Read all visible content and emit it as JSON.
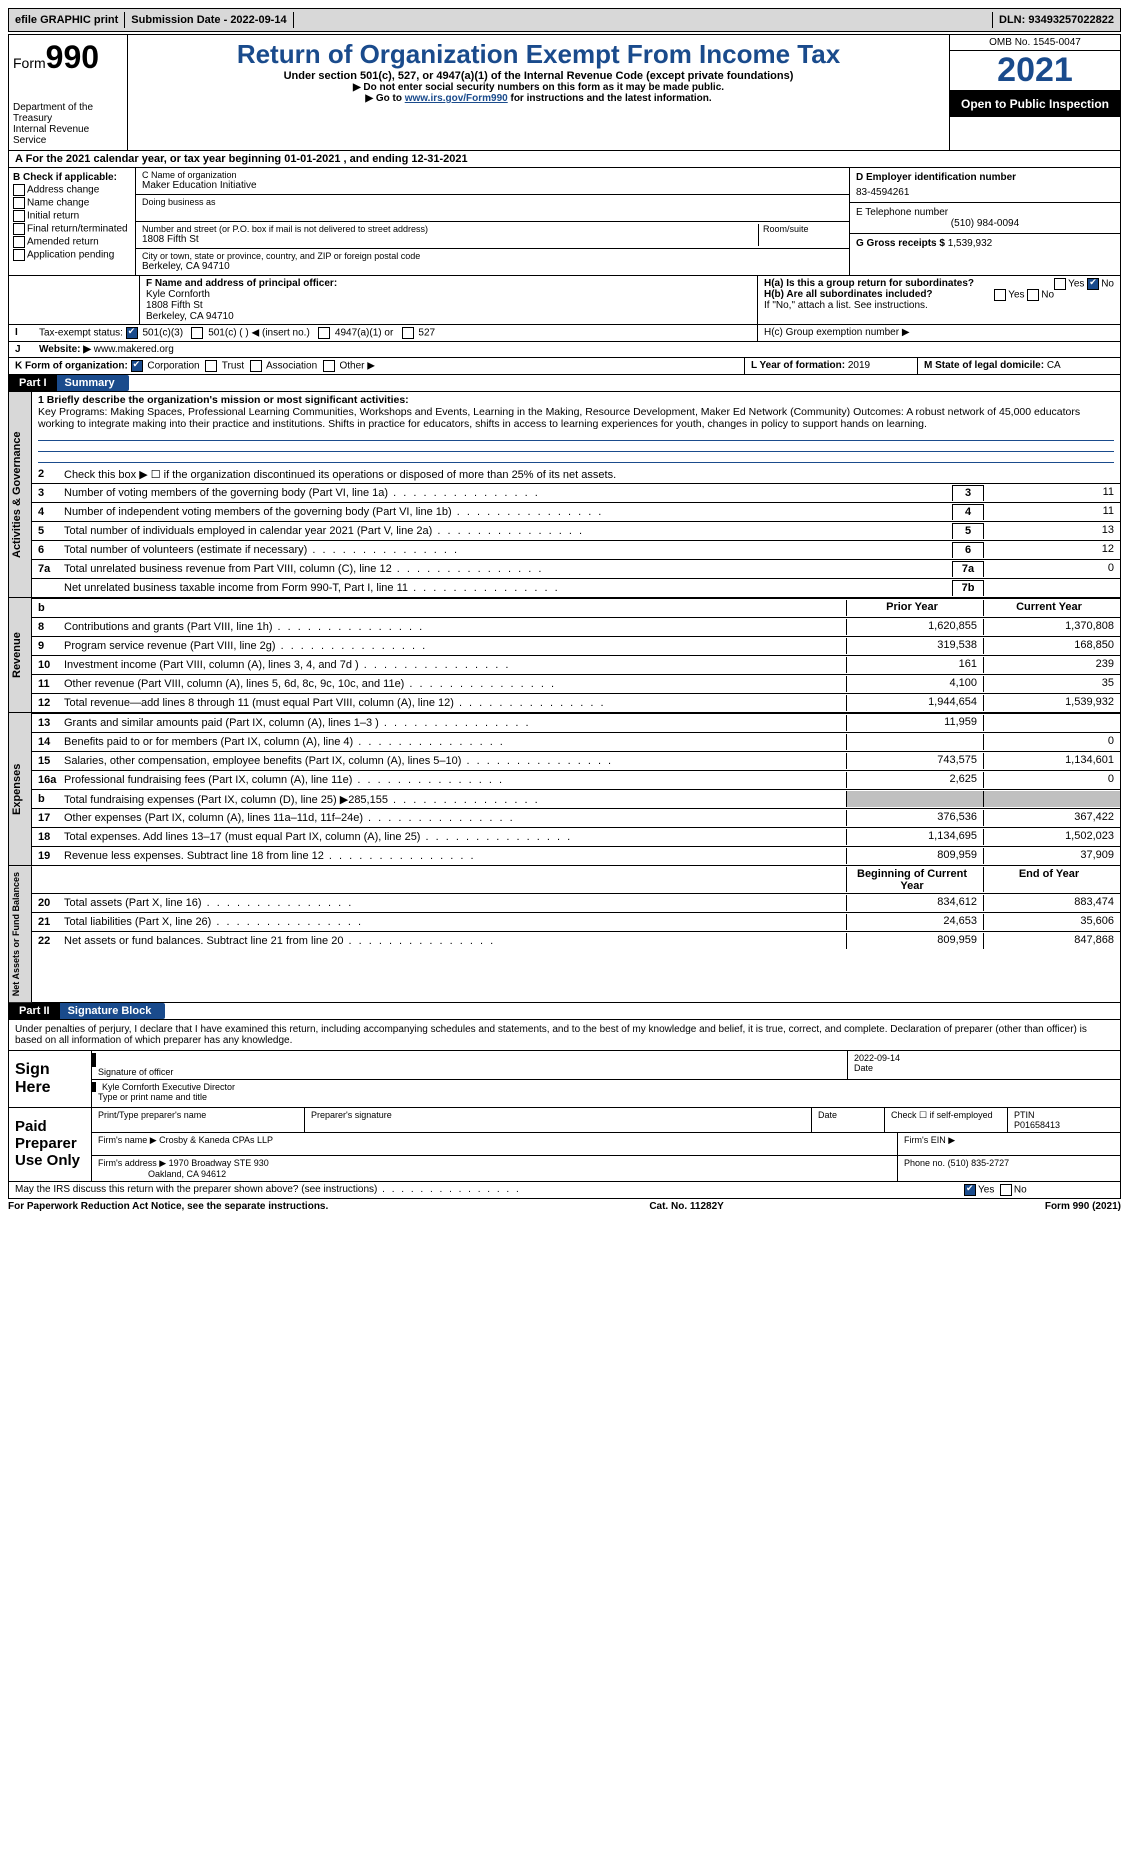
{
  "topbar": {
    "efile": "efile GRAPHIC print",
    "submission_label": "Submission Date - 2022-09-14",
    "dln_label": "DLN: 93493257022822"
  },
  "header": {
    "form_prefix": "Form",
    "form_number": "990",
    "dept": "Department of the Treasury",
    "irs": "Internal Revenue Service",
    "title": "Return of Organization Exempt From Income Tax",
    "sub": "Under section 501(c), 527, or 4947(a)(1) of the Internal Revenue Code (except private foundations)",
    "note1": "Do not enter social security numbers on this form as it may be made public.",
    "note2_pre": "Go to ",
    "note2_link": "www.irs.gov/Form990",
    "note2_post": " for instructions and the latest information.",
    "omb": "OMB No. 1545-0047",
    "year": "2021",
    "open_public": "Open to Public Inspection"
  },
  "section_a": "For the 2021 calendar year, or tax year beginning 01-01-2021    , and ending 12-31-2021",
  "boxB": {
    "title": "B Check if applicable:",
    "items": [
      "Address change",
      "Name change",
      "Initial return",
      "Final return/terminated",
      "Amended return",
      "Application pending"
    ]
  },
  "boxC": {
    "name_label": "C Name of organization",
    "name": "Maker Education Initiative",
    "dba_label": "Doing business as",
    "street_label": "Number and street (or P.O. box if mail is not delivered to street address)",
    "street": "1808 Fifth St",
    "suite_label": "Room/suite",
    "city_label": "City or town, state or province, country, and ZIP or foreign postal code",
    "city": "Berkeley, CA  94710"
  },
  "boxD": {
    "label": "D Employer identification number",
    "value": "83-4594261"
  },
  "boxE": {
    "label": "E Telephone number",
    "value": "(510) 984-0094"
  },
  "boxG": {
    "label": "G Gross receipts $",
    "value": "1,539,932"
  },
  "boxF": {
    "label": "F  Name and address of principal officer:",
    "name": "Kyle Cornforth",
    "street": "1808 Fifth St",
    "city": "Berkeley, CA  94710"
  },
  "boxH": {
    "a": "H(a)  Is this a group return for subordinates?",
    "b": "H(b)  Are all subordinates included?",
    "note": "If \"No,\" attach a list. See instructions.",
    "c": "H(c)  Group exemption number ▶"
  },
  "boxI": {
    "label": "Tax-exempt status:",
    "opts": [
      "501(c)(3)",
      "501(c) (  ) ◀ (insert no.)",
      "4947(a)(1) or",
      "527"
    ]
  },
  "boxJ": {
    "label": "Website: ▶",
    "value": "www.makered.org"
  },
  "boxK": {
    "label": "K Form of organization:",
    "opts": [
      "Corporation",
      "Trust",
      "Association",
      "Other ▶"
    ]
  },
  "boxL": {
    "label": "L Year of formation:",
    "value": "2019"
  },
  "boxM": {
    "label": "M State of legal domicile:",
    "value": "CA"
  },
  "part1": {
    "num": "Part I",
    "title": "Summary"
  },
  "mission": {
    "label": "1  Briefly describe the organization's mission or most significant activities:",
    "text": "Key Programs: Making Spaces, Professional Learning Communities, Workshops and Events, Learning in the Making, Resource Development, Maker Ed Network (Community) Outcomes: A robust network of 45,000 educators working to integrate making into their practice and institutions. Shifts in practice for educators, shifts in access to learning experiences for youth, changes in policy to support hands on learning."
  },
  "line2": "Check this box ▶ ☐  if the organization discontinued its operations or disposed of more than 25% of its net assets.",
  "gov_lines": [
    {
      "n": "3",
      "d": "Number of voting members of the governing body (Part VI, line 1a)",
      "b": "3",
      "v": "11"
    },
    {
      "n": "4",
      "d": "Number of independent voting members of the governing body (Part VI, line 1b)",
      "b": "4",
      "v": "11"
    },
    {
      "n": "5",
      "d": "Total number of individuals employed in calendar year 2021 (Part V, line 2a)",
      "b": "5",
      "v": "13"
    },
    {
      "n": "6",
      "d": "Total number of volunteers (estimate if necessary)",
      "b": "6",
      "v": "12"
    },
    {
      "n": "7a",
      "d": "Total unrelated business revenue from Part VIII, column (C), line 12",
      "b": "7a",
      "v": "0"
    },
    {
      "n": "",
      "d": "Net unrelated business taxable income from Form 990-T, Part I, line 11",
      "b": "7b",
      "v": ""
    }
  ],
  "rev_header": {
    "b": "b",
    "py": "Prior Year",
    "cy": "Current Year"
  },
  "rev_lines": [
    {
      "n": "8",
      "d": "Contributions and grants (Part VIII, line 1h)",
      "py": "1,620,855",
      "cy": "1,370,808"
    },
    {
      "n": "9",
      "d": "Program service revenue (Part VIII, line 2g)",
      "py": "319,538",
      "cy": "168,850"
    },
    {
      "n": "10",
      "d": "Investment income (Part VIII, column (A), lines 3, 4, and 7d )",
      "py": "161",
      "cy": "239"
    },
    {
      "n": "11",
      "d": "Other revenue (Part VIII, column (A), lines 5, 6d, 8c, 9c, 10c, and 11e)",
      "py": "4,100",
      "cy": "35"
    },
    {
      "n": "12",
      "d": "Total revenue—add lines 8 through 11 (must equal Part VIII, column (A), line 12)",
      "py": "1,944,654",
      "cy": "1,539,932"
    }
  ],
  "exp_lines": [
    {
      "n": "13",
      "d": "Grants and similar amounts paid (Part IX, column (A), lines 1–3 )",
      "py": "11,959",
      "cy": ""
    },
    {
      "n": "14",
      "d": "Benefits paid to or for members (Part IX, column (A), line 4)",
      "py": "",
      "cy": "0"
    },
    {
      "n": "15",
      "d": "Salaries, other compensation, employee benefits (Part IX, column (A), lines 5–10)",
      "py": "743,575",
      "cy": "1,134,601"
    },
    {
      "n": "16a",
      "d": "Professional fundraising fees (Part IX, column (A), line 11e)",
      "py": "2,625",
      "cy": "0"
    },
    {
      "n": "b",
      "d": "Total fundraising expenses (Part IX, column (D), line 25) ▶285,155",
      "py": "shade",
      "cy": "shade"
    },
    {
      "n": "17",
      "d": "Other expenses (Part IX, column (A), lines 11a–11d, 11f–24e)",
      "py": "376,536",
      "cy": "367,422"
    },
    {
      "n": "18",
      "d": "Total expenses. Add lines 13–17 (must equal Part IX, column (A), line 25)",
      "py": "1,134,695",
      "cy": "1,502,023"
    },
    {
      "n": "19",
      "d": "Revenue less expenses. Subtract line 18 from line 12",
      "py": "809,959",
      "cy": "37,909"
    }
  ],
  "na_header": {
    "py": "Beginning of Current Year",
    "cy": "End of Year"
  },
  "na_lines": [
    {
      "n": "20",
      "d": "Total assets (Part X, line 16)",
      "py": "834,612",
      "cy": "883,474"
    },
    {
      "n": "21",
      "d": "Total liabilities (Part X, line 26)",
      "py": "24,653",
      "cy": "35,606"
    },
    {
      "n": "22",
      "d": "Net assets or fund balances. Subtract line 21 from line 20",
      "py": "809,959",
      "cy": "847,868"
    }
  ],
  "vtabs": {
    "gov": "Activities & Governance",
    "rev": "Revenue",
    "exp": "Expenses",
    "na": "Net Assets or Fund Balances"
  },
  "part2": {
    "num": "Part II",
    "title": "Signature Block"
  },
  "perjury": "Under penalties of perjury, I declare that I have examined this return, including accompanying schedules and statements, and to the best of my knowledge and belief, it is true, correct, and complete. Declaration of preparer (other than officer) is based on all information of which preparer has any knowledge.",
  "sign": {
    "here": "Sign Here",
    "sig_label": "Signature of officer",
    "date": "2022-09-14",
    "date_label": "Date",
    "name": "Kyle Cornforth Executive Director",
    "name_label": "Type or print name and title"
  },
  "paid": {
    "title": "Paid Preparer Use Only",
    "h1": "Print/Type preparer's name",
    "h2": "Preparer's signature",
    "h3": "Date",
    "h4": "Check ☐ if self-employed",
    "ptin_label": "PTIN",
    "ptin": "P01658413",
    "firm_label": "Firm's name    ▶",
    "firm": "Crosby & Kaneda CPAs LLP",
    "ein_label": "Firm's EIN ▶",
    "addr_label": "Firm's address ▶",
    "addr1": "1970 Broadway STE 930",
    "addr2": "Oakland, CA  94612",
    "phone_label": "Phone no.",
    "phone": "(510) 835-2727"
  },
  "discuss": "May the IRS discuss this return with the preparer shown above? (see instructions)",
  "footer": {
    "left": "For Paperwork Reduction Act Notice, see the separate instructions.",
    "mid": "Cat. No. 11282Y",
    "right": "Form 990 (2021)"
  },
  "yes": "Yes",
  "no": "No"
}
